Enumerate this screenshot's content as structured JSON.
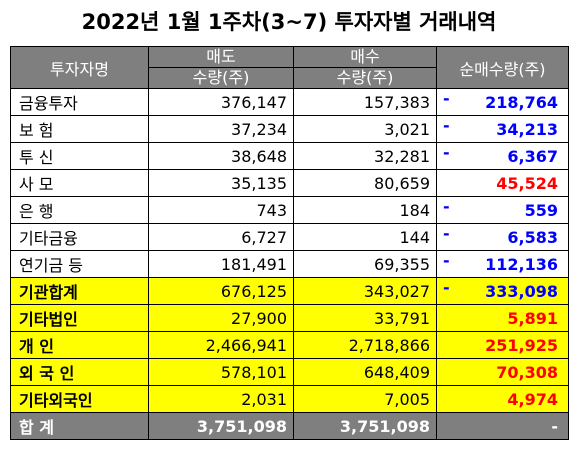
{
  "title": "2022년 1월 1주차(3~7) 투자자별 거래내역",
  "header": {
    "investor": "투자자명",
    "sell": "매도",
    "buy": "매수",
    "qty": "수량(주)",
    "net": "순매수량(주)"
  },
  "rows": [
    {
      "name": "금융투자",
      "sell": "376,147",
      "buy": "157,383",
      "sign": "-",
      "net": "218,764",
      "color": "#0000ff"
    },
    {
      "name": "보    험",
      "sell": "37,234",
      "buy": "3,021",
      "sign": "-",
      "net": "34,213",
      "color": "#0000ff"
    },
    {
      "name": "투    신",
      "sell": "38,648",
      "buy": "32,281",
      "sign": "-",
      "net": "6,367",
      "color": "#0000ff"
    },
    {
      "name": "사    모",
      "sell": "35,135",
      "buy": "80,659",
      "sign": "",
      "net": "45,524",
      "color": "#ff0000"
    },
    {
      "name": "은    행",
      "sell": "743",
      "buy": "184",
      "sign": "-",
      "net": "559",
      "color": "#0000ff"
    },
    {
      "name": "기타금융",
      "sell": "6,727",
      "buy": "144",
      "sign": "-",
      "net": "6,583",
      "color": "#0000ff"
    },
    {
      "name": "연기금 등",
      "sell": "181,491",
      "buy": "69,355",
      "sign": "-",
      "net": "112,136",
      "color": "#0000ff"
    }
  ],
  "summary_rows": [
    {
      "name": "기관합계",
      "sell": "676,125",
      "buy": "343,027",
      "sign": "-",
      "net": "333,098",
      "color": "#0000ff"
    },
    {
      "name": "기타법인",
      "sell": "27,900",
      "buy": "33,791",
      "sign": "",
      "net": "5,891",
      "color": "#ff0000"
    },
    {
      "name": "개    인",
      "sell": "2,466,941",
      "buy": "2,718,866",
      "sign": "",
      "net": "251,925",
      "color": "#ff0000"
    },
    {
      "name": "외 국 인",
      "sell": "578,101",
      "buy": "648,409",
      "sign": "",
      "net": "70,308",
      "color": "#ff0000"
    },
    {
      "name": "기타외국인",
      "sell": "2,031",
      "buy": "7,005",
      "sign": "",
      "net": "4,974",
      "color": "#ff0000"
    }
  ],
  "total": {
    "name": "합    계",
    "sell": "3,751,098",
    "buy": "3,751,098",
    "net": "-"
  }
}
